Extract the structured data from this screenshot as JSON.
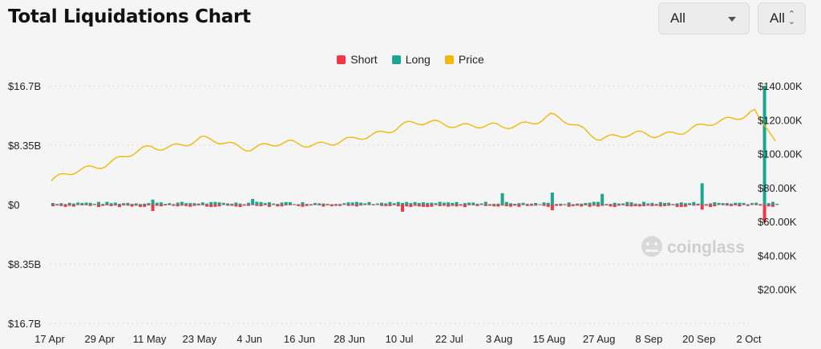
{
  "header": {
    "title": "Total Liquidations Chart"
  },
  "controls": {
    "symbol_select": "All",
    "range_select": "All"
  },
  "legend": [
    {
      "label": "Short",
      "color": "#f23645"
    },
    {
      "label": "Long",
      "color": "#1ba68f"
    },
    {
      "label": "Price",
      "color": "#f0b90b"
    }
  ],
  "watermark": "coinglass",
  "chart_data": {
    "type": "bar",
    "left_axis_ticks": [
      "$16.7B",
      "$8.35B",
      "$0",
      "$8.35B",
      "$16.7B"
    ],
    "right_axis_ticks": [
      "$140.00K",
      "$120.00K",
      "$100.00K",
      "$80.00K",
      "$60.00K",
      "$40.00K",
      "$20.00K"
    ],
    "x_ticks": [
      "17 Apr",
      "29 Apr",
      "11 May",
      "23 May",
      "4 Jun",
      "16 Jun",
      "28 Jun",
      "10 Jul",
      "22 Jul",
      "3 Aug",
      "15 Aug",
      "27 Aug",
      "8 Sep",
      "20 Sep",
      "2 Oct"
    ],
    "ylim_left": [
      -16.7,
      16.7
    ],
    "ylim_right": [
      0,
      140
    ],
    "units": {
      "liquidations": "billion USD",
      "price": "thousand USD"
    },
    "series": [
      {
        "name": "Long",
        "x": [
          "11 May",
          "4 Jun",
          "3 Aug",
          "15 Aug",
          "27 Aug",
          "20 Sep",
          "2 Oct"
        ],
        "values": [
          0.7,
          0.8,
          1.6,
          1.7,
          1.5,
          3.0,
          16.7
        ]
      },
      {
        "name": "Short",
        "x": [
          "11 May",
          "10 Jul",
          "15 Aug",
          "20 Sep",
          "2 Oct"
        ],
        "values": [
          -0.9,
          -1.0,
          -0.8,
          -0.7,
          -2.5
        ]
      },
      {
        "name": "Price",
        "x": [
          "17 Apr",
          "29 Apr",
          "11 May",
          "23 May",
          "4 Jun",
          "16 Jun",
          "28 Jun",
          "10 Jul",
          "22 Jul",
          "3 Aug",
          "15 Aug",
          "27 Aug",
          "8 Sep",
          "20 Sep",
          "2 Oct"
        ],
        "values": [
          84,
          94,
          103,
          108,
          104,
          106,
          107,
          117,
          118,
          115,
          122,
          110,
          111,
          115,
          125
        ]
      }
    ]
  }
}
